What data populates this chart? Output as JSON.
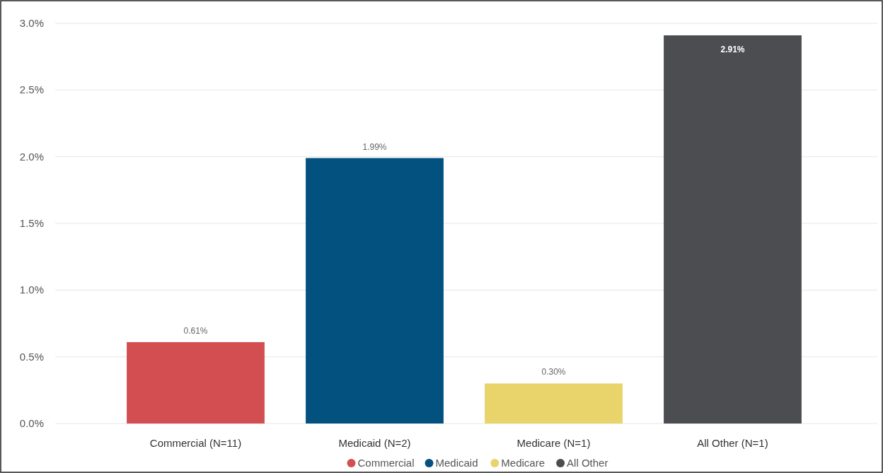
{
  "chart_data": {
    "type": "bar",
    "stacked": true,
    "categories": [
      "Commercial (N=11)",
      "Medicaid (N=2)",
      "Medicare (N=1)",
      "All Other (N=1)"
    ],
    "series": [
      {
        "name": "Commercial",
        "color": "#d24e51",
        "values": [
          0.61,
          null,
          null,
          null
        ],
        "value_labels": [
          "0.61%",
          null,
          null,
          null
        ]
      },
      {
        "name": "Medicaid",
        "color": "#02517f",
        "values": [
          null,
          1.99,
          null,
          null
        ],
        "value_labels": [
          null,
          "1.99%",
          null,
          null
        ]
      },
      {
        "name": "Medicare",
        "color": "#e8d46a",
        "values": [
          null,
          null,
          0.3,
          null
        ],
        "value_labels": [
          null,
          null,
          "0.30%",
          null
        ]
      },
      {
        "name": "All Other",
        "color": "#4c4d51",
        "values": [
          null,
          null,
          null,
          2.91
        ],
        "value_labels": [
          null,
          null,
          null,
          "2.91%"
        ]
      }
    ],
    "ylim": [
      0,
      3
    ],
    "yticks": [
      {
        "value": 0,
        "label": "0.0%"
      },
      {
        "value": 0.5,
        "label": "0.5%"
      },
      {
        "value": 1,
        "label": "1.0%"
      },
      {
        "value": 1.5,
        "label": "1.5%"
      },
      {
        "value": 2,
        "label": "2.0%"
      },
      {
        "value": 2.5,
        "label": "2.5%"
      },
      {
        "value": 3,
        "label": "3.0%"
      }
    ],
    "grid": "y",
    "legend": "bottom"
  }
}
